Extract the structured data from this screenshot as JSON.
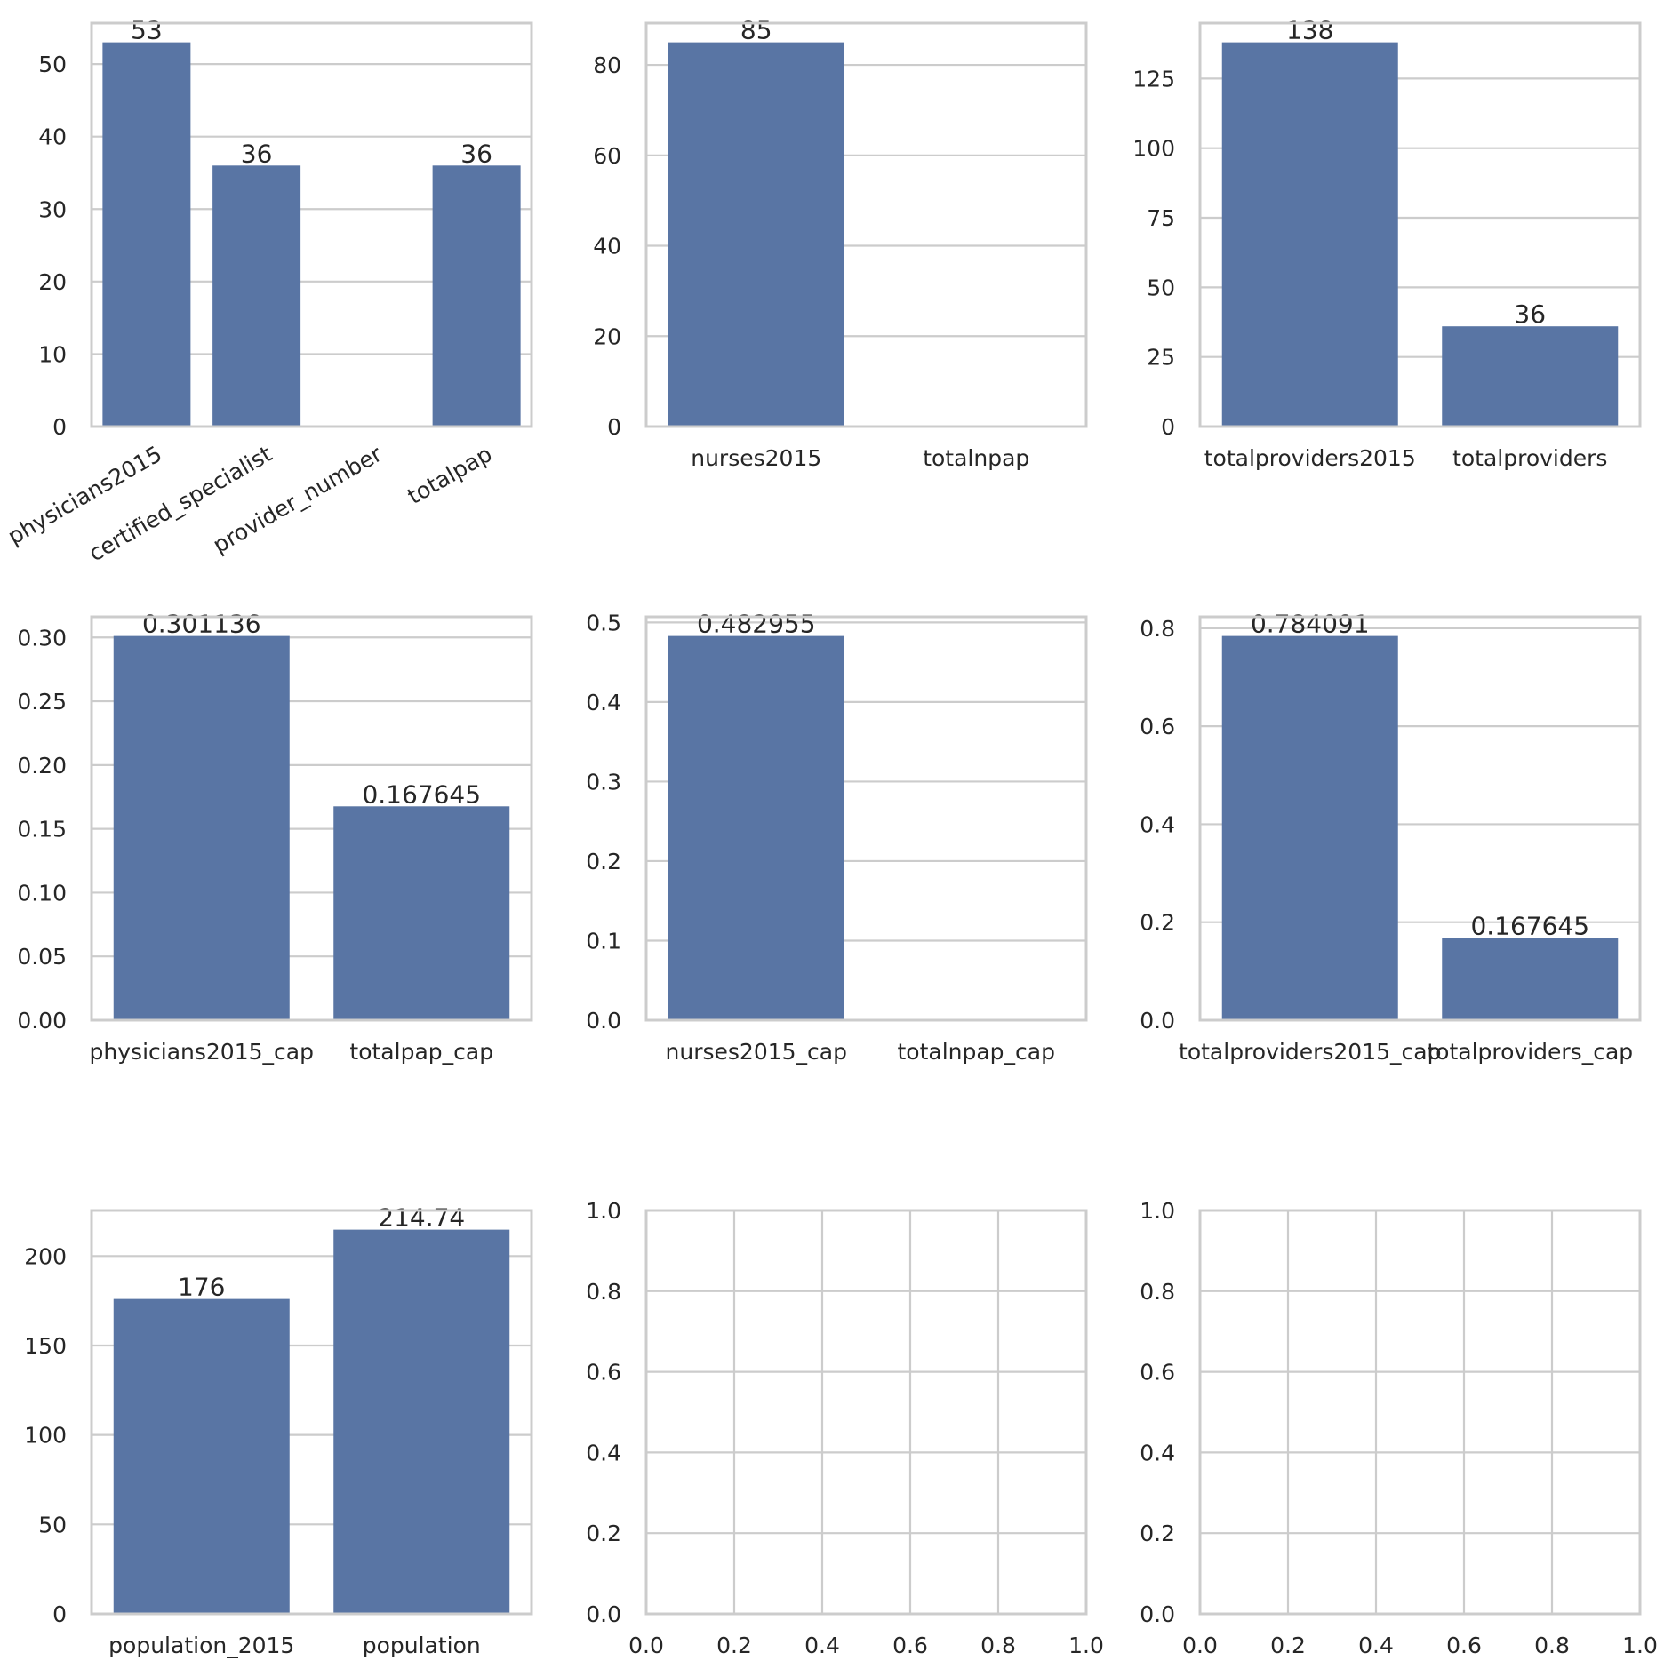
{
  "colors": {
    "bar": "#5975a4",
    "grid": "#cccccc",
    "spine": "#cccccc",
    "text": "#262626",
    "background": "#ffffff"
  },
  "chart_data": [
    {
      "type": "bar",
      "categories": [
        "physicians2015",
        "certified_specialist",
        "provider_number",
        "totalpap"
      ],
      "values": [
        53,
        36,
        null,
        36
      ],
      "data_labels": [
        "53",
        "36",
        "",
        "36"
      ],
      "ylim": [
        0,
        55.65
      ],
      "yticks": [
        0,
        10,
        20,
        30,
        40,
        50
      ],
      "ytick_labels": [
        "0",
        "10",
        "20",
        "30",
        "40",
        "50"
      ],
      "xtick_rotation": 30,
      "grid": true
    },
    {
      "type": "bar",
      "categories": [
        "nurses2015",
        "totalnpap"
      ],
      "values": [
        85,
        null
      ],
      "data_labels": [
        "85",
        ""
      ],
      "ylim": [
        0,
        89.25
      ],
      "yticks": [
        0,
        20,
        40,
        60,
        80
      ],
      "ytick_labels": [
        "0",
        "20",
        "40",
        "60",
        "80"
      ],
      "grid": true
    },
    {
      "type": "bar",
      "categories": [
        "totalproviders2015",
        "totalproviders"
      ],
      "values": [
        138,
        36
      ],
      "data_labels": [
        "138",
        "36"
      ],
      "ylim": [
        0,
        144.9
      ],
      "yticks": [
        0,
        25,
        50,
        75,
        100,
        125
      ],
      "ytick_labels": [
        "0",
        "25",
        "50",
        "75",
        "100",
        "125"
      ],
      "grid": true
    },
    {
      "type": "bar",
      "categories": [
        "physicians2015_cap",
        "totalpap_cap"
      ],
      "values": [
        0.301136,
        0.167645
      ],
      "data_labels": [
        "0.301136",
        "0.167645"
      ],
      "ylim": [
        0,
        0.3162
      ],
      "yticks": [
        0,
        0.05,
        0.1,
        0.15,
        0.2,
        0.25,
        0.3
      ],
      "ytick_labels": [
        "0.00",
        "0.05",
        "0.10",
        "0.15",
        "0.20",
        "0.25",
        "0.30"
      ],
      "grid": true
    },
    {
      "type": "bar",
      "categories": [
        "nurses2015_cap",
        "totalnpap_cap"
      ],
      "values": [
        0.482955,
        null
      ],
      "data_labels": [
        "0.482955",
        ""
      ],
      "ylim": [
        0,
        0.5071
      ],
      "yticks": [
        0,
        0.1,
        0.2,
        0.3,
        0.4,
        0.5
      ],
      "ytick_labels": [
        "0.0",
        "0.1",
        "0.2",
        "0.3",
        "0.4",
        "0.5"
      ],
      "grid": true
    },
    {
      "type": "bar",
      "categories": [
        "totalproviders2015_cap",
        "totalproviders_cap"
      ],
      "values": [
        0.784091,
        0.167645
      ],
      "data_labels": [
        "0.784091",
        "0.167645"
      ],
      "ylim": [
        0,
        0.8233
      ],
      "yticks": [
        0,
        0.2,
        0.4,
        0.6,
        0.8
      ],
      "ytick_labels": [
        "0.0",
        "0.2",
        "0.4",
        "0.6",
        "0.8"
      ],
      "grid": true
    },
    {
      "type": "bar",
      "categories": [
        "population_2015",
        "population"
      ],
      "values": [
        176,
        214.74
      ],
      "data_labels": [
        "176",
        "214.74"
      ],
      "ylim": [
        0,
        225.48
      ],
      "yticks": [
        0,
        50,
        100,
        150,
        200
      ],
      "ytick_labels": [
        "0",
        "50",
        "100",
        "150",
        "200"
      ],
      "grid": true
    },
    {
      "type": "empty",
      "xlim": [
        0,
        1
      ],
      "ylim": [
        0,
        1
      ],
      "xticks": [
        0,
        0.2,
        0.4,
        0.6,
        0.8,
        1.0
      ],
      "xtick_labels": [
        "0.0",
        "0.2",
        "0.4",
        "0.6",
        "0.8",
        "1.0"
      ],
      "yticks": [
        0,
        0.2,
        0.4,
        0.6,
        0.8,
        1.0
      ],
      "ytick_labels": [
        "0.0",
        "0.2",
        "0.4",
        "0.6",
        "0.8",
        "1.0"
      ],
      "grid": true
    },
    {
      "type": "empty",
      "xlim": [
        0,
        1
      ],
      "ylim": [
        0,
        1
      ],
      "xticks": [
        0,
        0.2,
        0.4,
        0.6,
        0.8,
        1.0
      ],
      "xtick_labels": [
        "0.0",
        "0.2",
        "0.4",
        "0.6",
        "0.8",
        "1.0"
      ],
      "yticks": [
        0,
        0.2,
        0.4,
        0.6,
        0.8,
        1.0
      ],
      "ytick_labels": [
        "0.0",
        "0.2",
        "0.4",
        "0.6",
        "0.8",
        "1.0"
      ],
      "grid": true
    }
  ]
}
